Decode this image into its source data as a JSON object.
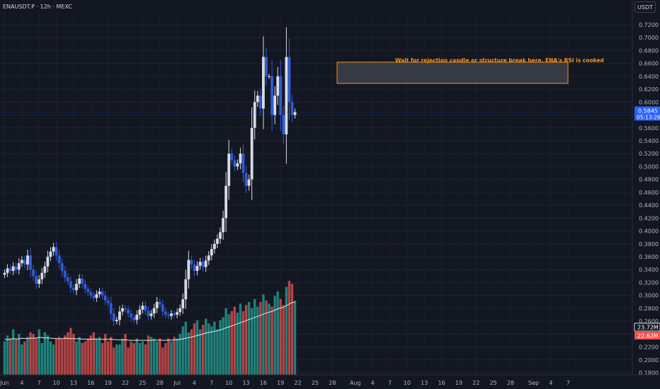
{
  "header": {
    "symbol": "ENAUSDT.P · 12h · MEXC",
    "currency": "USDT"
  },
  "annotation": {
    "text": "Wait for rejection candle or structure break here. ENA's RSI is cooked",
    "zone": [
      0.629,
      0.662
    ]
  },
  "price_tag": {
    "price": "0.5845",
    "countdown": "05:13:26",
    "value": 0.5845
  },
  "volume_tags": [
    {
      "label": "23.72M",
      "color": "#e6e6e6"
    },
    {
      "label": "22.62M",
      "color": "#ef5350"
    }
  ],
  "colors": {
    "bg": "#131722",
    "bull": "#d8dbe3",
    "bear": "#2f5bd8",
    "vol_up": "#26a69a",
    "vol_down": "#ef5350",
    "zone": "#f7931a",
    "text": "#b2b5be"
  },
  "chart_data": {
    "type": "candlestick",
    "symbol": "ENAUSDT.P",
    "interval": "12h",
    "exchange": "MEXC",
    "y_ticks": [
      "0.7200",
      "0.7000",
      "0.6800",
      "0.6600",
      "0.6400",
      "0.6200",
      "0.6000",
      "0.5800",
      "0.5600",
      "0.5400",
      "0.5200",
      "0.5000",
      "0.4800",
      "0.4600",
      "0.4400",
      "0.4200",
      "0.4000",
      "0.3800",
      "0.3600",
      "0.3400",
      "0.3200",
      "0.3000",
      "0.2800",
      "0.2600",
      "0.2400",
      "0.2200",
      "0.2000",
      "0.1800"
    ],
    "x_ticks": [
      {
        "label": "Jun",
        "day": 0
      },
      {
        "label": "4",
        "day": 3
      },
      {
        "label": "7",
        "day": 6
      },
      {
        "label": "10",
        "day": 9
      },
      {
        "label": "13",
        "day": 12
      },
      {
        "label": "16",
        "day": 15
      },
      {
        "label": "19",
        "day": 18
      },
      {
        "label": "22",
        "day": 21
      },
      {
        "label": "25",
        "day": 24
      },
      {
        "label": "28",
        "day": 27
      },
      {
        "label": "Jul",
        "day": 30
      },
      {
        "label": "4",
        "day": 33
      },
      {
        "label": "7",
        "day": 36
      },
      {
        "label": "10",
        "day": 39
      },
      {
        "label": "13",
        "day": 42
      },
      {
        "label": "16",
        "day": 45
      },
      {
        "label": "19",
        "day": 48
      },
      {
        "label": "22",
        "day": 51
      },
      {
        "label": "25",
        "day": 54
      },
      {
        "label": "28",
        "day": 57
      },
      {
        "label": "Aug",
        "day": 61
      },
      {
        "label": "4",
        "day": 64
      },
      {
        "label": "7",
        "day": 67
      },
      {
        "label": "10",
        "day": 70
      },
      {
        "label": "13",
        "day": 73
      },
      {
        "label": "16",
        "day": 76
      },
      {
        "label": "19",
        "day": 79
      },
      {
        "label": "22",
        "day": 82
      },
      {
        "label": "25",
        "day": 85
      },
      {
        "label": "28",
        "day": 88
      },
      {
        "label": "Sep",
        "day": 92
      },
      {
        "label": "4",
        "day": 95
      },
      {
        "label": "7",
        "day": 98
      }
    ],
    "close_path": [
      0.335,
      0.342,
      0.338,
      0.345,
      0.34,
      0.35,
      0.355,
      0.348,
      0.362,
      0.34,
      0.33,
      0.318,
      0.325,
      0.335,
      0.345,
      0.36,
      0.368,
      0.375,
      0.362,
      0.35,
      0.338,
      0.328,
      0.322,
      0.312,
      0.308,
      0.318,
      0.326,
      0.318,
      0.31,
      0.305,
      0.3,
      0.296,
      0.302,
      0.306,
      0.3,
      0.292,
      0.288,
      0.272,
      0.26,
      0.262,
      0.275,
      0.28,
      0.278,
      0.272,
      0.266,
      0.262,
      0.27,
      0.278,
      0.284,
      0.276,
      0.268,
      0.272,
      0.28,
      0.29,
      0.286,
      0.275,
      0.27,
      0.268,
      0.272,
      0.27,
      0.274,
      0.28,
      0.294,
      0.325,
      0.355,
      0.348,
      0.338,
      0.346,
      0.352,
      0.344,
      0.354,
      0.362,
      0.372,
      0.38,
      0.388,
      0.398,
      0.42,
      0.47,
      0.52,
      0.51,
      0.5,
      0.505,
      0.52,
      0.49,
      0.47,
      0.48,
      0.56,
      0.6,
      0.61,
      0.59,
      0.67,
      0.64,
      0.64,
      0.58,
      0.61,
      0.64,
      0.58,
      0.55,
      0.67,
      0.6,
      0.58,
      0.5845
    ],
    "volume": [
      22,
      26,
      24,
      30,
      24,
      27,
      20,
      22,
      25,
      28,
      27,
      24,
      30,
      21,
      28,
      26,
      22,
      20,
      24,
      25,
      24,
      26,
      28,
      31,
      27,
      22,
      25,
      21,
      22,
      24,
      26,
      28,
      24,
      25,
      21,
      27,
      22,
      25,
      18,
      20,
      20,
      24,
      27,
      18,
      22,
      21,
      24,
      21,
      22,
      20,
      26,
      25,
      24,
      22,
      24,
      18,
      21,
      24,
      22,
      25,
      24,
      27,
      32,
      35,
      28,
      30,
      34,
      36,
      30,
      33,
      37,
      34,
      32,
      35,
      30,
      36,
      38,
      44,
      40,
      42,
      45,
      41,
      47,
      42,
      46,
      48,
      44,
      50,
      45,
      48,
      53,
      49,
      47,
      45,
      52,
      55,
      50,
      46,
      58,
      62,
      60,
      49
    ],
    "volume_max": 62,
    "volume_ma": [
      23.5,
      23.2,
      23.6,
      23.9,
      23.7,
      23.8,
      24.1,
      24.0,
      23.9,
      24.2,
      24.1,
      24.3,
      24.7,
      24.6,
      24.3,
      24.4,
      24.2,
      24.0,
      23.9,
      23.8,
      23.9,
      24.1,
      24.0,
      23.9,
      23.9,
      23.8,
      23.7,
      23.6,
      23.5,
      23.4,
      23.5,
      23.6,
      23.5,
      23.5,
      23.4,
      23.5,
      23.4,
      23.5,
      23.3,
      23.1,
      23.0,
      23.0,
      23.1,
      22.9,
      22.8,
      22.7,
      22.8,
      22.8,
      22.8,
      22.7,
      22.8,
      22.8,
      22.9,
      22.9,
      22.9,
      22.8,
      22.8,
      22.9,
      22.9,
      23.0,
      23.1,
      23.3,
      23.7,
      24.2,
      24.5,
      24.9,
      25.4,
      26.0,
      26.4,
      26.9,
      27.5,
      27.9,
      28.3,
      28.8,
      29.1,
      29.6,
      30.2,
      31.0,
      31.6,
      32.2,
      33.0,
      33.6,
      34.4,
      35.0,
      35.7,
      36.5,
      37.1,
      37.9,
      38.5,
      39.2,
      40.1,
      40.7,
      41.3,
      41.8,
      42.6,
      43.5,
      44.1,
      44.6,
      45.6,
      46.7,
      47.7,
      47.9
    ],
    "last_price": 0.5845,
    "highlight_zone": [
      0.629,
      0.662
    ],
    "grid": true
  }
}
